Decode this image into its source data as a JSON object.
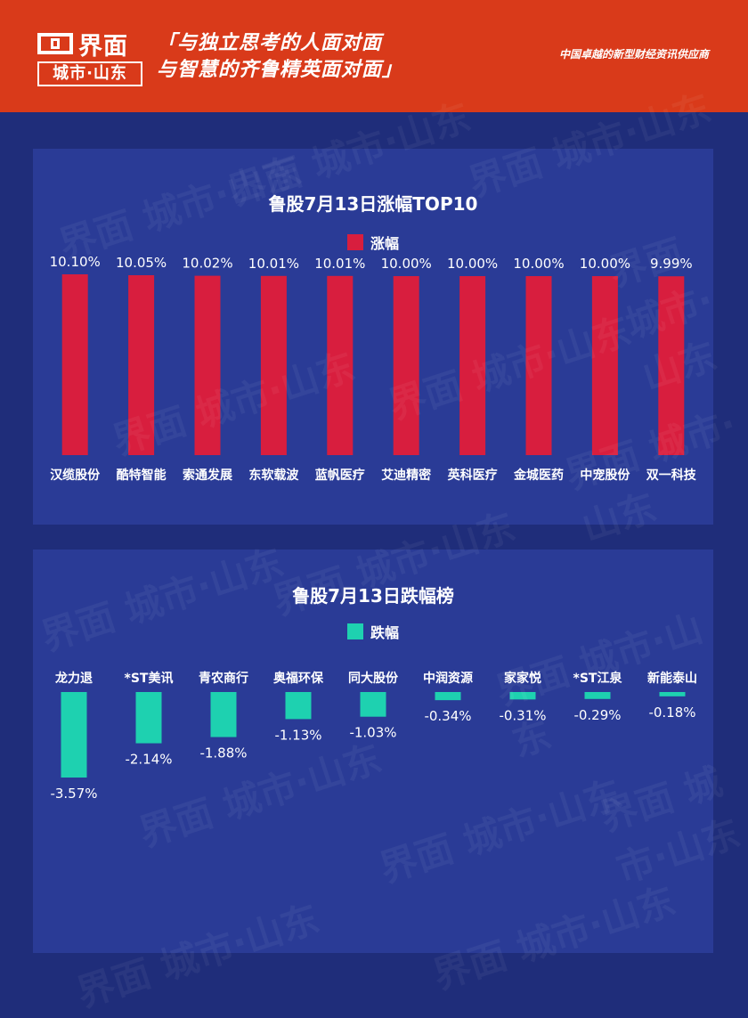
{
  "header": {
    "logo_top": "界面",
    "logo_bottom": "城市·山东",
    "slogan_line1": "「与独立思考的人面对面",
    "slogan_line2": "与智慧的齐鲁精英面对面」",
    "tagline": "中国卓越的新型财经资讯供应商",
    "colors": {
      "header_bg": "#d93a1a",
      "page_bg": "#1f2d7a",
      "panel_bg": "#2a3b96"
    }
  },
  "chart_data": [
    {
      "type": "bar",
      "title": "鲁股7月13日涨幅TOP10",
      "legend": "涨幅",
      "color": "#d81e3e",
      "categories": [
        "汉缆股份",
        "酷特智能",
        "索通发展",
        "东软载波",
        "蓝帆医疗",
        "艾迪精密",
        "英科医疗",
        "金城医药",
        "中宠股份",
        "双一科技"
      ],
      "values": [
        10.1,
        10.05,
        10.02,
        10.01,
        10.01,
        10.0,
        10.0,
        10.0,
        10.0,
        9.99
      ],
      "value_labels": [
        "10.10%",
        "10.05%",
        "10.02%",
        "10.01%",
        "10.01%",
        "10.00%",
        "10.00%",
        "10.00%",
        "10.00%",
        "9.99%"
      ],
      "ylim": [
        0,
        10.1
      ]
    },
    {
      "type": "bar",
      "title": "鲁股7月13日跌幅榜",
      "legend": "跌幅",
      "color": "#1ed1b0",
      "categories": [
        "龙力退",
        "*ST美讯",
        "青农商行",
        "奥福环保",
        "同大股份",
        "中润资源",
        "家家悦",
        "*ST江泉",
        "新能泰山"
      ],
      "values": [
        -3.57,
        -2.14,
        -1.88,
        -1.13,
        -1.03,
        -0.34,
        -0.31,
        -0.29,
        -0.18
      ],
      "value_labels": [
        "-3.57%",
        "-2.14%",
        "-1.88%",
        "-1.13%",
        "-1.03%",
        "-0.34%",
        "-0.31%",
        "-0.29%",
        "-0.18%"
      ],
      "ylim": [
        -3.57,
        0
      ]
    }
  ],
  "watermark": "界面 城市·山东"
}
